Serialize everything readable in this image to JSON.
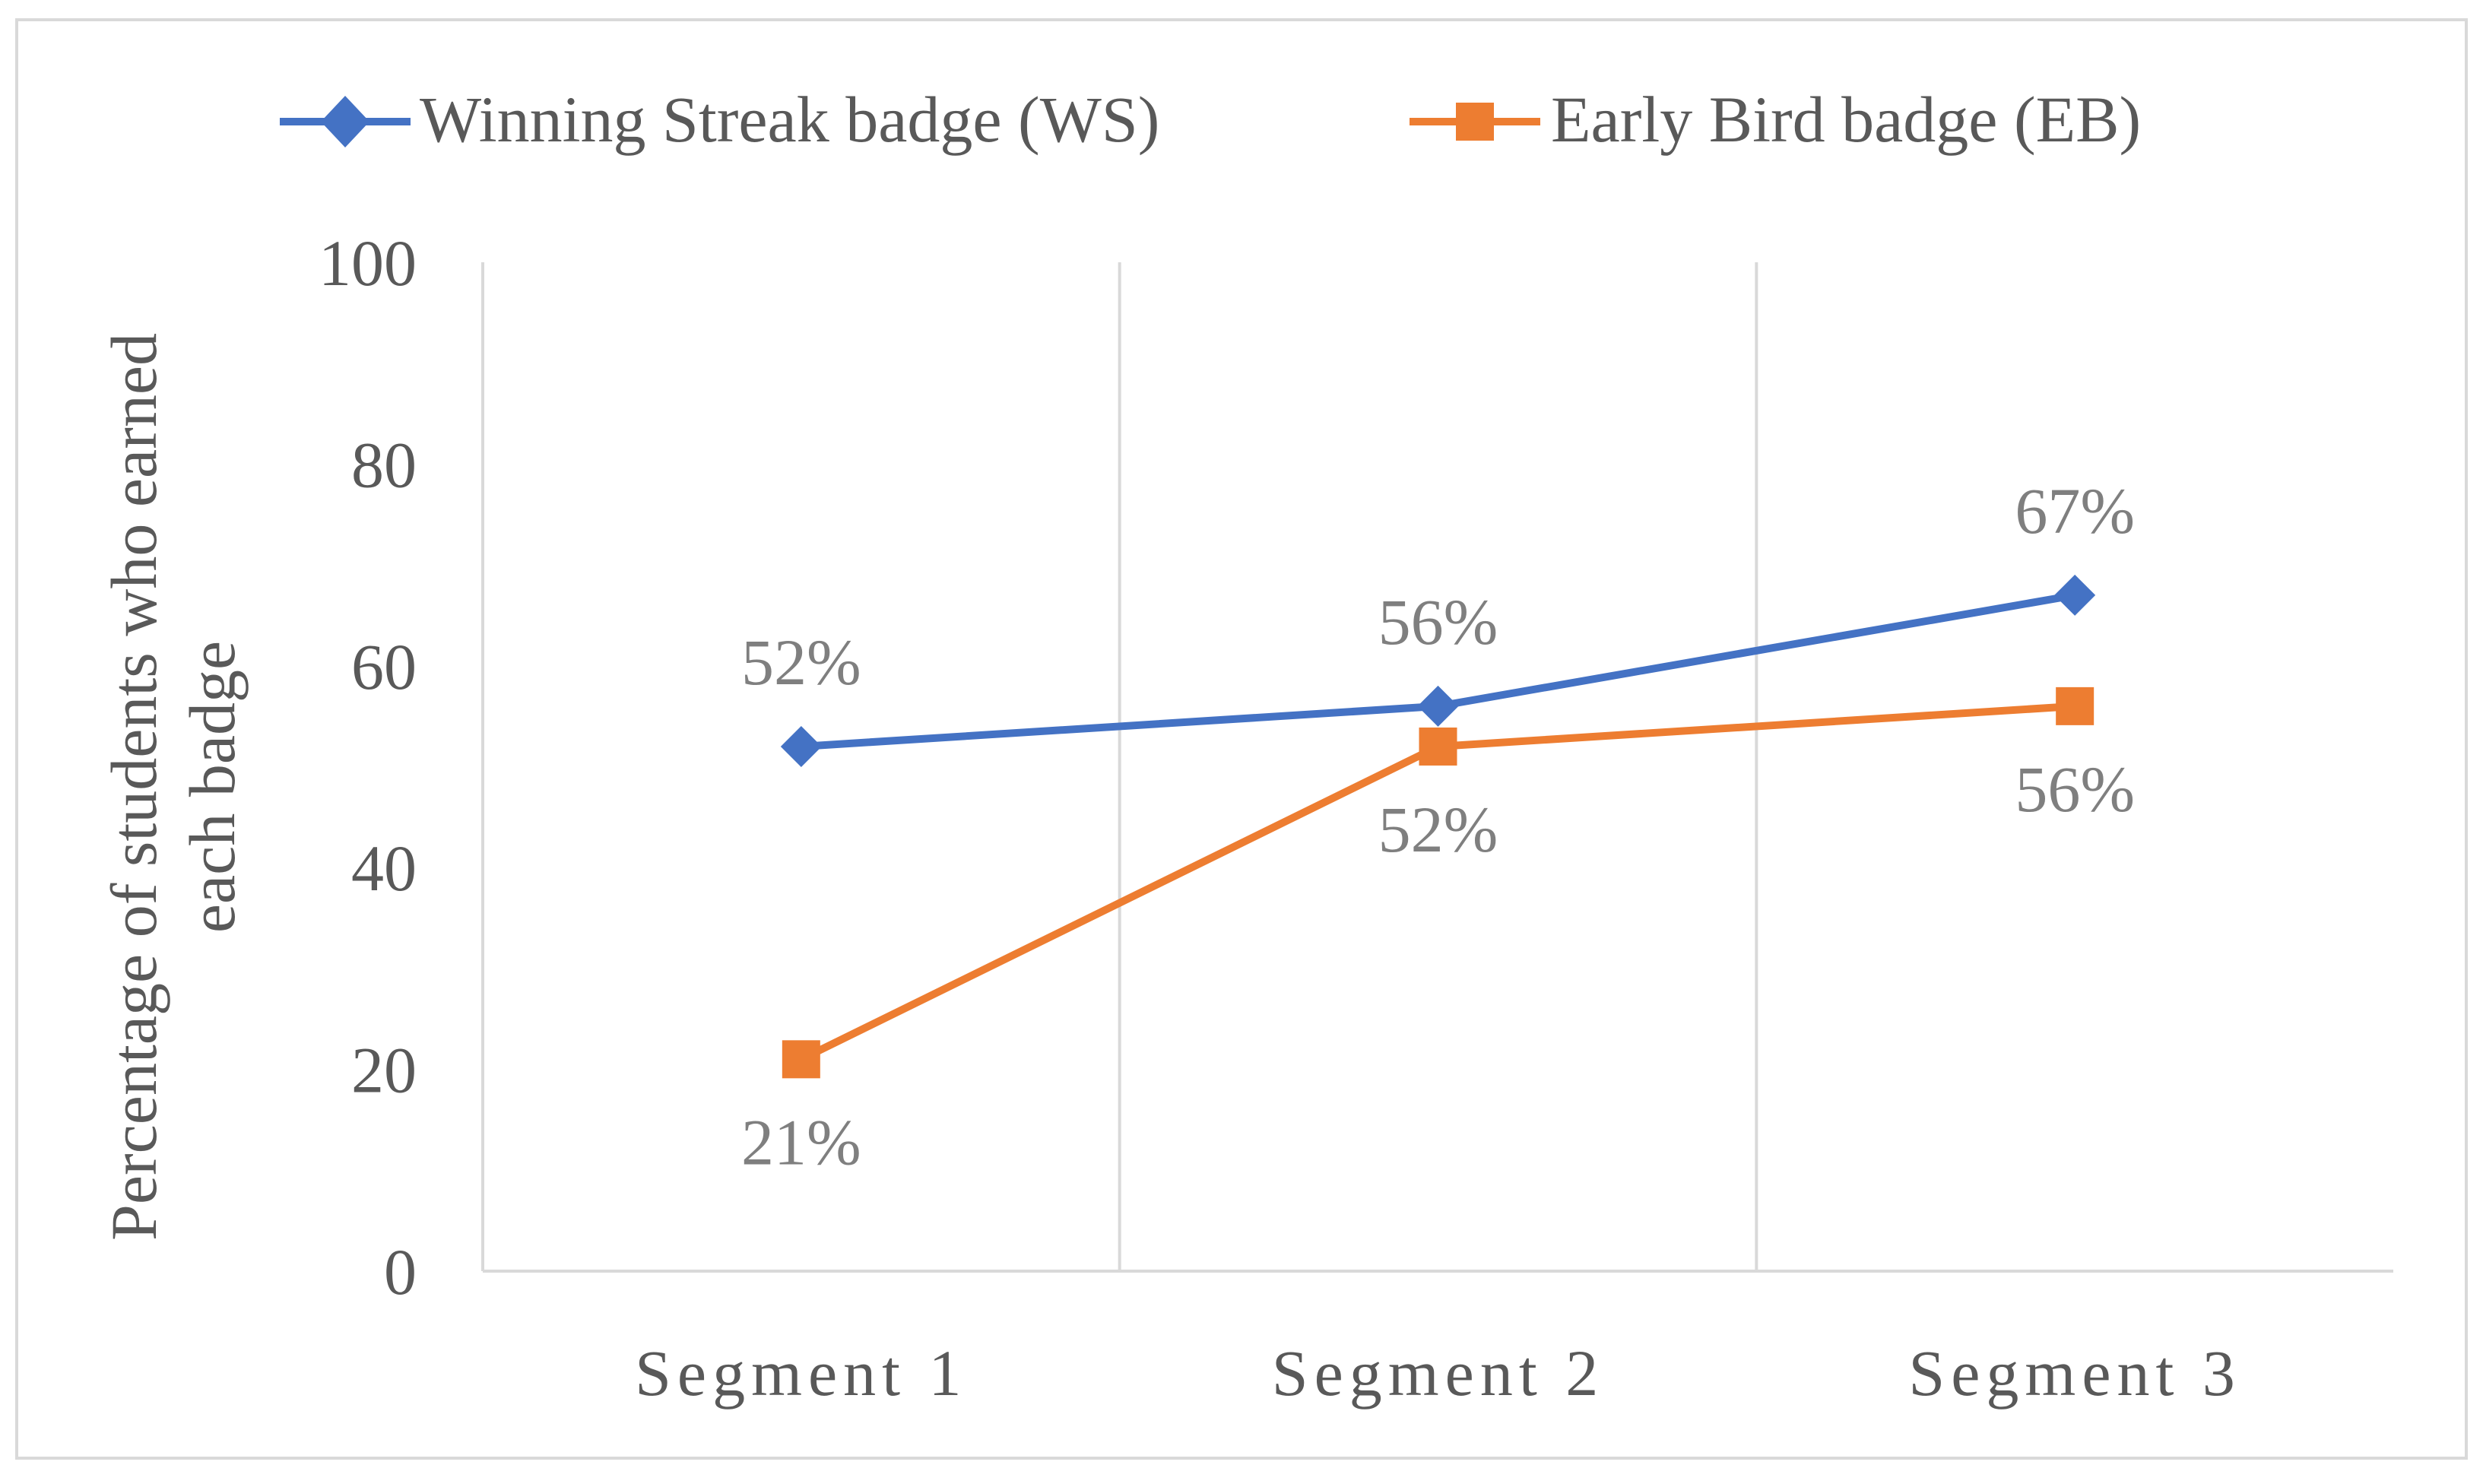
{
  "chart_data": {
    "type": "line",
    "title": "",
    "categories": [
      "Segment 1",
      "Segment 2",
      "Segment 3"
    ],
    "series": [
      {
        "name": "Winning Streak badge (WS)",
        "marker": "diamond",
        "color": "#4472C4",
        "values": [
          52,
          56,
          67
        ],
        "labels": [
          "52%",
          "56%",
          "67%"
        ],
        "label_position": "above"
      },
      {
        "name": "Early Bird badge (EB)",
        "marker": "square",
        "color": "#ED7D31",
        "values": [
          21,
          52,
          56
        ],
        "labels": [
          "21%",
          "52%",
          "56%"
        ],
        "label_position": "below"
      }
    ],
    "xlabel": "",
    "ylabel_lines": [
      "Percentage of students who earned",
      "each badge"
    ],
    "ylim": [
      0,
      100
    ],
    "yticks": [
      0,
      20,
      40,
      60,
      80,
      100
    ],
    "ytick_labels": [
      "0",
      "20",
      "40",
      "60",
      "80",
      "100"
    ],
    "grid": "vertical category separators",
    "legend": "top-center",
    "colors": {
      "text": "#595959",
      "label": "#7F7F7F",
      "axis": "#D9D9D9",
      "border": "#D9D9D9"
    }
  }
}
